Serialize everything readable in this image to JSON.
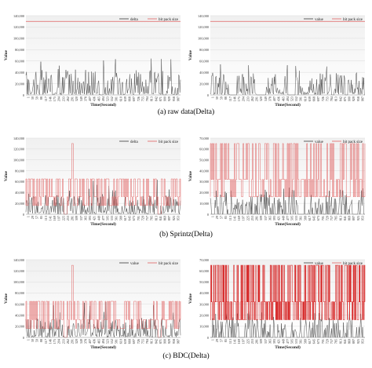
{
  "captions": [
    "(a) raw data(Delta)",
    "(b) Sprintz(Delta)",
    "(c) BDC(Delta)"
  ],
  "colors": {
    "value_line": "#3a3a3a",
    "bitpack_line": "#e06060",
    "bitpack_dense": "#d83030",
    "grid": "#dcdcdc",
    "plot_bg_top": "#f0f0f0",
    "plot_bg_bottom": "#ffffff"
  },
  "chart_data": [
    {
      "type": "line",
      "ylabel": "Value",
      "xlabel": "Time(Second)",
      "legend": [
        "delta",
        "bit pack size"
      ],
      "legend_placement": "top-right",
      "ylim": [
        0,
        140000
      ],
      "yticks": [
        "0",
        "20,000",
        "40,000",
        "60,000",
        "80,000",
        "100,000",
        "120,000",
        "140,000"
      ],
      "xticks": [
        "1",
        "30",
        "59",
        "88",
        "117",
        "146",
        "175",
        "204",
        "233",
        "262",
        "291",
        "320",
        "349",
        "378",
        "407",
        "436",
        "465",
        "494",
        "523",
        "552",
        "581",
        "610",
        "639",
        "668",
        "697",
        "726",
        "755",
        "784",
        "813",
        "842",
        "871",
        "900",
        "929",
        "958",
        "987"
      ],
      "bitpack_level": 130000,
      "gaps": [
        [
          0.48,
          0.5
        ],
        [
          0.885,
          0.91
        ]
      ],
      "value_peaks": [
        35000,
        45000,
        65000
      ],
      "mode": "raw"
    },
    {
      "type": "line",
      "ylabel": "Value",
      "xlabel": "Time(Second)",
      "legend": [
        "value",
        "bit pack size"
      ],
      "legend_placement": "top-right",
      "ylim": [
        0,
        140000
      ],
      "yticks": [
        "0",
        "20,000",
        "40,000",
        "60,000",
        "80,000",
        "100,000",
        "120,000",
        "140,000"
      ],
      "xticks": [
        "1",
        "30",
        "59",
        "88",
        "117",
        "146",
        "175",
        "204",
        "233",
        "262",
        "291",
        "320",
        "349",
        "378",
        "407",
        "436",
        "465",
        "494",
        "523",
        "552",
        "581",
        "610",
        "639",
        "668",
        "697",
        "726",
        "755",
        "784",
        "813",
        "842",
        "871",
        "900",
        "929",
        "958",
        "987"
      ],
      "bitpack_level": 130000,
      "gaps": [
        [
          0.13,
          0.17
        ],
        [
          0.3,
          0.36
        ],
        [
          0.5,
          0.55
        ],
        [
          0.78,
          0.8
        ],
        [
          0.87,
          0.89
        ]
      ],
      "value_peaks": [
        20000,
        40000,
        55000
      ],
      "mode": "raw"
    },
    {
      "type": "line",
      "ylabel": "Value",
      "xlabel": "Time(Second)",
      "legend": [
        "delta",
        "bit pack size"
      ],
      "legend_placement": "top-right",
      "ylim": [
        0,
        140000
      ],
      "yticks": [
        "0",
        "20,000",
        "40,000",
        "60,000",
        "80,000",
        "100,000",
        "120,000",
        "140,000"
      ],
      "xticks": [
        "1",
        "29",
        "57",
        "85",
        "113",
        "141",
        "169",
        "197",
        "225",
        "253",
        "281",
        "309",
        "337",
        "365",
        "393",
        "421",
        "449",
        "477",
        "505",
        "533",
        "561",
        "589",
        "617",
        "645",
        "673",
        "701",
        "729",
        "757",
        "785",
        "813",
        "841",
        "869",
        "897",
        "925",
        "953"
      ],
      "bitpack_level": [
        16000,
        32000,
        65000
      ],
      "spike_level": 130000,
      "gaps": [
        [
          0.245,
          0.265
        ],
        [
          0.85,
          0.87
        ]
      ],
      "value_peaks": [
        15000,
        35000,
        65000
      ],
      "mode": "sprintz"
    },
    {
      "type": "line",
      "ylabel": "Value",
      "xlabel": "Time(Second)",
      "legend": [
        "value",
        "bit pack size"
      ],
      "legend_placement": "top-right",
      "ylim": [
        0,
        70000
      ],
      "yticks": [
        "0",
        "10,000",
        "20,000",
        "30,000",
        "40,000",
        "50,000",
        "60,000",
        "70,000"
      ],
      "xticks": [
        "1",
        "29",
        "57",
        "85",
        "113",
        "141",
        "169",
        "197",
        "225",
        "253",
        "281",
        "309",
        "337",
        "365",
        "393",
        "421",
        "449",
        "477",
        "505",
        "533",
        "561",
        "589",
        "617",
        "645",
        "673",
        "701",
        "729",
        "757",
        "785",
        "813",
        "841",
        "869",
        "897",
        "925",
        "953"
      ],
      "bitpack_level": [
        16000,
        32000,
        65000
      ],
      "value_peaks": [
        10000,
        18000,
        25000
      ],
      "mode": "sprintz2"
    },
    {
      "type": "line",
      "ylabel": "Value",
      "xlabel": "Time(Second)",
      "legend": [
        "value",
        "bit pack size"
      ],
      "legend_placement": "top-right",
      "ylim": [
        0,
        140000
      ],
      "yticks": [
        "0",
        "20,000",
        "40,000",
        "60,000",
        "80,000",
        "100,000",
        "120,000",
        "140,000"
      ],
      "xticks": [
        "1",
        "30",
        "59",
        "88",
        "117",
        "146",
        "175",
        "204",
        "233",
        "262",
        "291",
        "320",
        "349",
        "378",
        "407",
        "436",
        "465",
        "494",
        "523",
        "552",
        "581",
        "610",
        "639",
        "668",
        "697",
        "726",
        "755",
        "784",
        "813",
        "842",
        "871",
        "900",
        "929",
        "958",
        "987"
      ],
      "bitpack_level": [
        16000,
        32000,
        65000
      ],
      "spike_level": 130000,
      "gaps": [
        [
          0.245,
          0.265
        ],
        [
          0.85,
          0.87
        ]
      ],
      "value_peaks": [
        15000,
        35000,
        65000
      ],
      "mode": "bdc"
    },
    {
      "type": "line",
      "ylabel": "Value",
      "xlabel": "Time(Second)",
      "legend": [
        "value",
        "bit pack size"
      ],
      "legend_placement": "top-right",
      "ylim": [
        0,
        70000
      ],
      "yticks": [
        "0",
        "10,000",
        "20,000",
        "30,000",
        "40,000",
        "50,000",
        "60,000",
        "70,000"
      ],
      "xticks": [
        "1",
        "29",
        "57",
        "85",
        "113",
        "141",
        "169",
        "197",
        "225",
        "253",
        "281",
        "309",
        "337",
        "365",
        "393",
        "421",
        "449",
        "477",
        "505",
        "533",
        "561",
        "589",
        "617",
        "645",
        "673",
        "701",
        "729",
        "757",
        "785",
        "813",
        "841",
        "869",
        "897",
        "925",
        "953"
      ],
      "bitpack_level": [
        16000,
        32000,
        65000
      ],
      "value_peaks": [
        10000,
        18000,
        25000
      ],
      "mode": "bdc2"
    }
  ]
}
